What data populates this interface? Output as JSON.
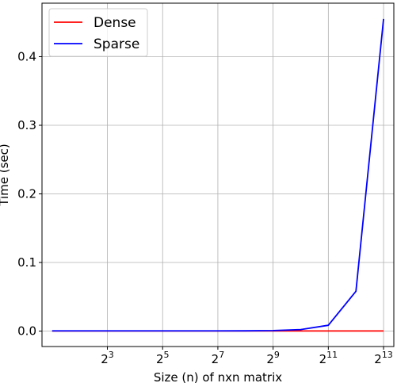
{
  "chart_data": {
    "type": "line",
    "xscale": "log2",
    "x": [
      2,
      4,
      8,
      16,
      32,
      64,
      128,
      256,
      512,
      1024,
      2048,
      4096,
      8192
    ],
    "series": [
      {
        "name": "Dense",
        "color": "#ff0000",
        "values": [
          0.0002,
          0.0002,
          0.0002,
          0.0002,
          0.0002,
          0.0002,
          0.0002,
          0.0002,
          0.0002,
          0.0002,
          0.0002,
          0.0002,
          0.0002
        ]
      },
      {
        "name": "Sparse",
        "color": "#0000ff",
        "values": [
          0.0003,
          0.0003,
          0.0003,
          0.0003,
          0.0003,
          0.0003,
          0.0003,
          0.0004,
          0.0008,
          0.0022,
          0.0085,
          0.058,
          0.455
        ]
      }
    ],
    "xticks": [
      {
        "value": 8,
        "base": "2",
        "exp": "3"
      },
      {
        "value": 32,
        "base": "2",
        "exp": "5"
      },
      {
        "value": 128,
        "base": "2",
        "exp": "7"
      },
      {
        "value": 512,
        "base": "2",
        "exp": "9"
      },
      {
        "value": 2048,
        "base": "2",
        "exp": "11"
      },
      {
        "value": 8192,
        "base": "2",
        "exp": "13"
      }
    ],
    "yticks": [
      {
        "value": 0.0,
        "label": "0.0"
      },
      {
        "value": 0.1,
        "label": "0.1"
      },
      {
        "value": 0.2,
        "label": "0.2"
      },
      {
        "value": 0.3,
        "label": "0.3"
      },
      {
        "value": 0.4,
        "label": "0.4"
      }
    ],
    "xlim": [
      1.55,
      10600
    ],
    "ylim": [
      -0.0225,
      0.478
    ],
    "xlabel": "Size (n) of nxn matrix",
    "ylabel": "Time (sec)",
    "grid": true,
    "legend_position": "top-left"
  }
}
